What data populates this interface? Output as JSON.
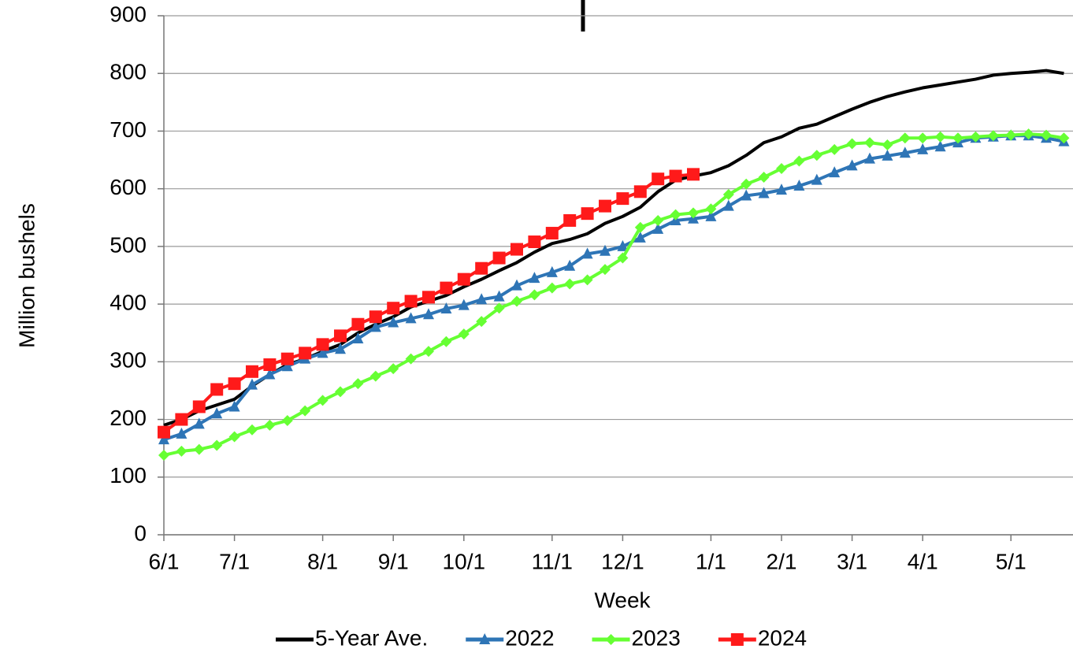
{
  "chart_data": {
    "type": "line",
    "y_label": "Million bushels",
    "x_label": "Week",
    "categories": [
      "6/1",
      null,
      null,
      null,
      "7/1",
      null,
      null,
      null,
      null,
      "8/1",
      null,
      null,
      null,
      "9/1",
      null,
      null,
      null,
      "10/1",
      null,
      null,
      null,
      null,
      "11/1",
      null,
      null,
      null,
      "12/1",
      null,
      null,
      null,
      null,
      "1/1",
      null,
      null,
      null,
      "2/1",
      null,
      null,
      null,
      "3/1",
      null,
      null,
      null,
      "4/1",
      null,
      null,
      null,
      null,
      "5/1",
      null,
      null,
      null
    ],
    "series": [
      {
        "name": "5-Year Ave.",
        "color": "#000000",
        "marker": "none",
        "values": [
          190,
          200,
          215,
          225,
          235,
          258,
          278,
          295,
          305,
          318,
          330,
          350,
          365,
          378,
          395,
          405,
          415,
          430,
          443,
          458,
          472,
          490,
          505,
          512,
          522,
          540,
          552,
          568,
          595,
          615,
          622,
          628,
          640,
          658,
          680,
          690,
          705,
          712,
          725,
          738,
          750,
          760,
          768,
          775,
          780,
          785,
          790,
          797,
          800,
          802,
          805,
          800
        ]
      },
      {
        "name": "2022",
        "color": "#2e75b6",
        "marker": "triangle",
        "values": [
          165,
          175,
          192,
          210,
          222,
          260,
          278,
          292,
          305,
          315,
          322,
          340,
          360,
          368,
          375,
          382,
          392,
          398,
          408,
          413,
          432,
          445,
          455,
          466,
          487,
          492,
          500,
          515,
          530,
          545,
          548,
          552,
          570,
          588,
          592,
          598,
          605,
          615,
          628,
          640,
          652,
          657,
          662,
          668,
          673,
          680,
          688,
          690,
          692,
          692,
          688,
          682
        ]
      },
      {
        "name": "2023",
        "color": "#66ff33",
        "marker": "diamond",
        "values": [
          138,
          145,
          148,
          155,
          170,
          182,
          190,
          198,
          215,
          233,
          248,
          262,
          275,
          288,
          305,
          318,
          335,
          348,
          370,
          393,
          405,
          416,
          428,
          435,
          442,
          460,
          480,
          533,
          545,
          555,
          558,
          565,
          590,
          608,
          620,
          635,
          648,
          658,
          668,
          678,
          680,
          676,
          688,
          688,
          690,
          688,
          690,
          692,
          693,
          695,
          693,
          688
        ]
      },
      {
        "name": "2024",
        "color": "#ff1a1a",
        "marker": "square",
        "values": [
          178,
          200,
          222,
          252,
          262,
          283,
          295,
          305,
          315,
          330,
          345,
          365,
          378,
          393,
          405,
          412,
          428,
          443,
          462,
          480,
          495,
          508,
          523,
          545,
          557,
          570,
          583,
          595,
          617,
          622,
          625,
          null,
          null,
          null,
          null,
          null,
          null,
          null,
          null,
          null,
          null,
          null,
          null,
          null,
          null,
          null,
          null,
          null,
          null,
          null,
          null,
          null
        ]
      }
    ],
    "ylim": [
      0,
      900
    ],
    "yticks": [
      0,
      100,
      200,
      300,
      400,
      500,
      600,
      700,
      800,
      900
    ],
    "grid": true
  }
}
